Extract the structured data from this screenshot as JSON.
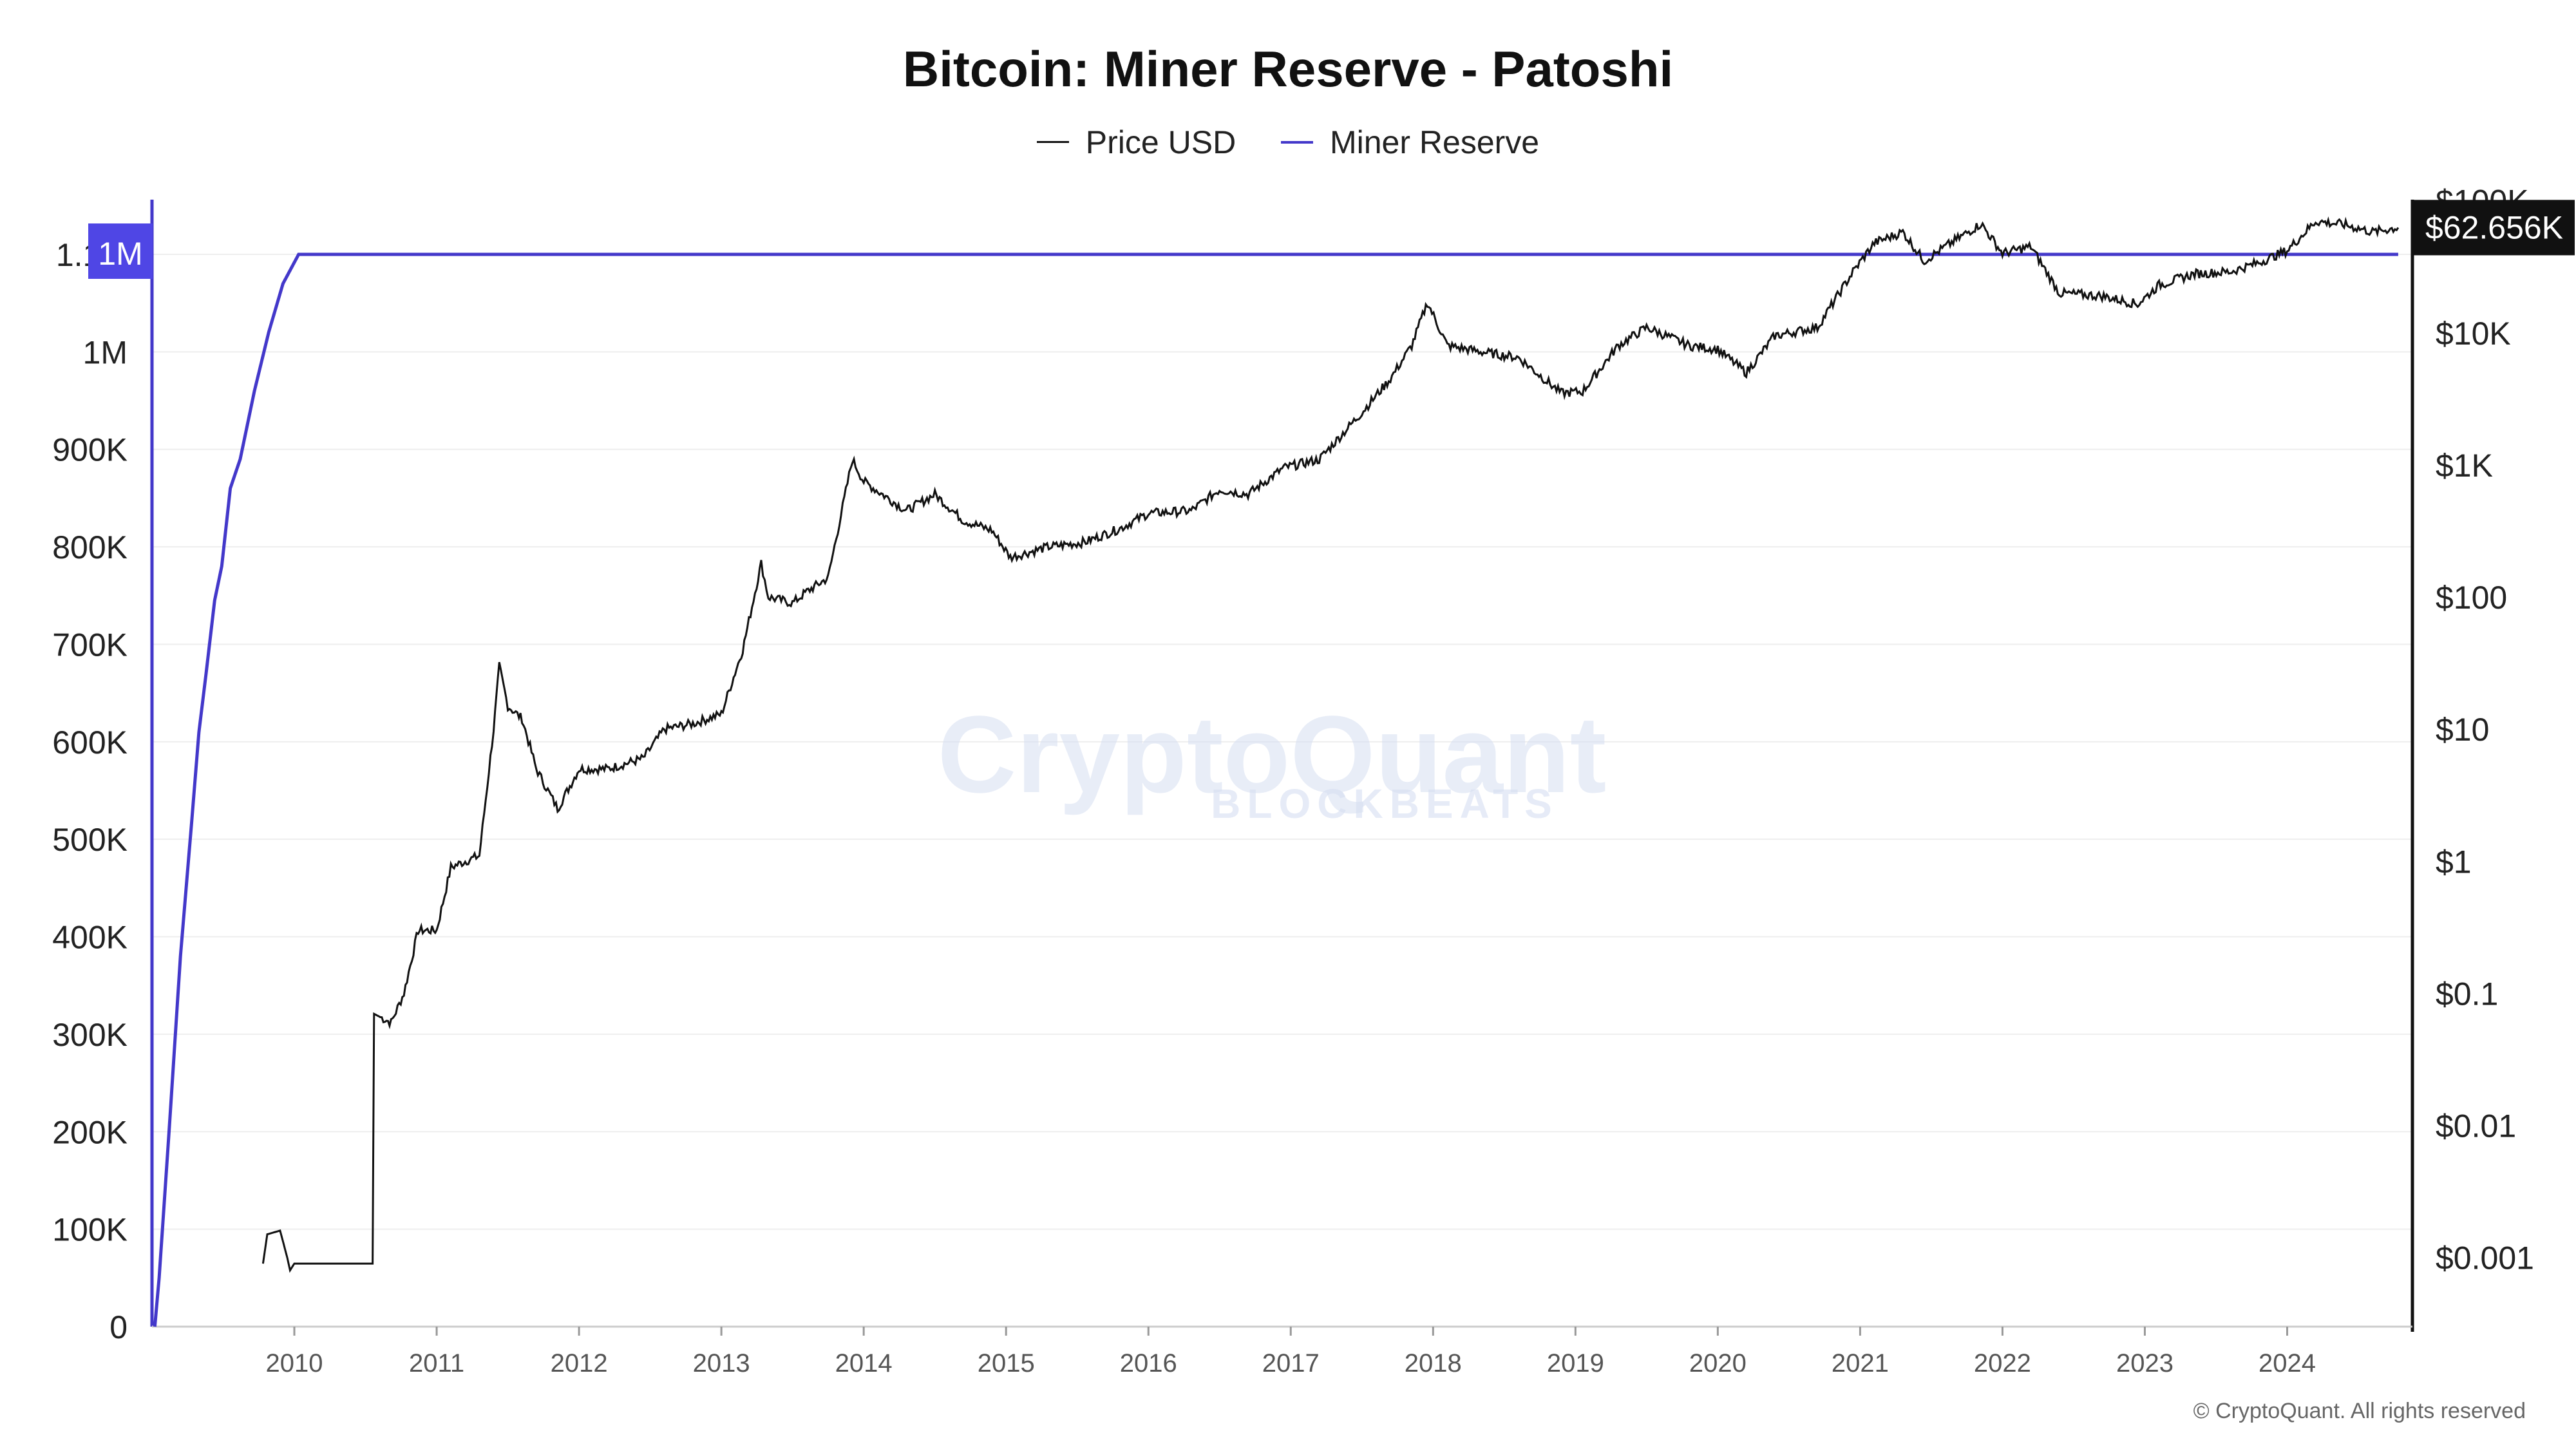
{
  "chart_data": {
    "type": "line",
    "title": "Bitcoin: Miner Reserve - Patoshi",
    "legend": [
      "Price USD",
      "Miner Reserve"
    ],
    "legend_placement": "top-center",
    "colors": {
      "price": "#111111",
      "reserve": "#4338ca",
      "right_badge": "#111111",
      "left_badge": "#4f46e5"
    },
    "x_ticks": [
      "2010",
      "2011",
      "2012",
      "2013",
      "2014",
      "2015",
      "2016",
      "2017",
      "2018",
      "2019",
      "2020",
      "2021",
      "2022",
      "2023",
      "2024"
    ],
    "y_left": {
      "label": "",
      "range": [
        0,
        1100000
      ],
      "ticks": [
        0,
        100000,
        200000,
        300000,
        400000,
        500000,
        600000,
        700000,
        800000,
        900000,
        1000000,
        1100000
      ],
      "tick_labels": [
        "0",
        "100K",
        "200K",
        "300K",
        "400K",
        "500K",
        "600K",
        "700K",
        "800K",
        "900K",
        "1M",
        "1.1M"
      ]
    },
    "y_right": {
      "label": "",
      "scale": "log",
      "range": [
        0.0003,
        200000
      ],
      "ticks": [
        0.001,
        0.01,
        0.1,
        1,
        10,
        100,
        1000,
        10000,
        100000
      ],
      "tick_labels": [
        "$0.001",
        "$0.01",
        "$0.1",
        "$1",
        "$10",
        "$100",
        "$1K",
        "$10K",
        "$100K"
      ]
    },
    "current_badges": {
      "reserve": "1M",
      "price": "$62.656K"
    },
    "series": [
      {
        "name": "Miner Reserve",
        "axis": "left",
        "points": [
          [
            2009.02,
            0
          ],
          [
            2009.05,
            50000
          ],
          [
            2009.12,
            200000
          ],
          [
            2009.2,
            380000
          ],
          [
            2009.28,
            520000
          ],
          [
            2009.33,
            610000
          ],
          [
            2009.38,
            670000
          ],
          [
            2009.44,
            745000
          ],
          [
            2009.49,
            780000
          ],
          [
            2009.55,
            860000
          ],
          [
            2009.62,
            890000
          ],
          [
            2009.72,
            960000
          ],
          [
            2009.82,
            1020000
          ],
          [
            2009.92,
            1070000
          ],
          [
            2010.03,
            1100000
          ],
          [
            2010.29,
            1100000
          ],
          [
            2014.0,
            1100000
          ],
          [
            2018.0,
            1100000
          ],
          [
            2022.0,
            1100000
          ],
          [
            2024.78,
            1100000
          ]
        ]
      },
      {
        "name": "Price USD",
        "axis": "right",
        "points": [
          [
            2009.78,
            0.0009
          ],
          [
            2009.81,
            0.0015
          ],
          [
            2009.9,
            0.0016
          ],
          [
            2009.95,
            0.001
          ],
          [
            2009.97,
            0.0008
          ],
          [
            2010.0,
            0.0009
          ],
          [
            2010.55,
            0.0009
          ],
          [
            2010.56,
            0.07
          ],
          [
            2010.68,
            0.06
          ],
          [
            2010.77,
            0.1
          ],
          [
            2010.87,
            0.3
          ],
          [
            2011.0,
            0.3
          ],
          [
            2011.1,
            0.9
          ],
          [
            2011.2,
            1.0
          ],
          [
            2011.3,
            1.1
          ],
          [
            2011.4,
            10
          ],
          [
            2011.44,
            30
          ],
          [
            2011.5,
            15
          ],
          [
            2011.6,
            12
          ],
          [
            2011.7,
            5
          ],
          [
            2011.85,
            2.5
          ],
          [
            2012.0,
            5
          ],
          [
            2012.2,
            5
          ],
          [
            2012.45,
            6
          ],
          [
            2012.6,
            10
          ],
          [
            2012.8,
            11
          ],
          [
            2013.0,
            13
          ],
          [
            2013.15,
            40
          ],
          [
            2013.28,
            180
          ],
          [
            2013.33,
            100
          ],
          [
            2013.5,
            90
          ],
          [
            2013.6,
            110
          ],
          [
            2013.75,
            140
          ],
          [
            2013.92,
            1100
          ],
          [
            2014.0,
            750
          ],
          [
            2014.3,
            450
          ],
          [
            2014.5,
            600
          ],
          [
            2014.7,
            380
          ],
          [
            2014.9,
            320
          ],
          [
            2015.03,
            200
          ],
          [
            2015.3,
            240
          ],
          [
            2015.55,
            260
          ],
          [
            2015.8,
            330
          ],
          [
            2016.0,
            430
          ],
          [
            2016.3,
            450
          ],
          [
            2016.5,
            650
          ],
          [
            2016.7,
            600
          ],
          [
            2016.95,
            950
          ],
          [
            2017.2,
            1100
          ],
          [
            2017.5,
            2500
          ],
          [
            2017.7,
            4500
          ],
          [
            2017.85,
            8000
          ],
          [
            2017.96,
            17000
          ],
          [
            2018.1,
            8000
          ],
          [
            2018.4,
            7000
          ],
          [
            2018.6,
            6500
          ],
          [
            2018.9,
            3500
          ],
          [
            2019.05,
            3600
          ],
          [
            2019.3,
            8000
          ],
          [
            2019.5,
            11000
          ],
          [
            2019.8,
            8000
          ],
          [
            2020.0,
            7500
          ],
          [
            2020.2,
            5000
          ],
          [
            2020.4,
            9500
          ],
          [
            2020.7,
            11000
          ],
          [
            2020.95,
            29000
          ],
          [
            2021.1,
            48000
          ],
          [
            2021.3,
            58000
          ],
          [
            2021.45,
            35000
          ],
          [
            2021.6,
            45000
          ],
          [
            2021.85,
            67000
          ],
          [
            2022.0,
            40000
          ],
          [
            2022.2,
            45000
          ],
          [
            2022.4,
            20000
          ],
          [
            2022.7,
            19000
          ],
          [
            2022.95,
            16500
          ],
          [
            2023.1,
            23000
          ],
          [
            2023.35,
            28000
          ],
          [
            2023.6,
            29000
          ],
          [
            2023.8,
            34000
          ],
          [
            2024.0,
            42000
          ],
          [
            2024.2,
            70000
          ],
          [
            2024.4,
            66000
          ],
          [
            2024.6,
            58000
          ],
          [
            2024.78,
            62656
          ]
        ]
      }
    ]
  },
  "watermark": {
    "brand": "CryptoQuant",
    "sub": "BLOCKBEATS"
  },
  "copyright": "© CryptoQuant. All rights reserved"
}
